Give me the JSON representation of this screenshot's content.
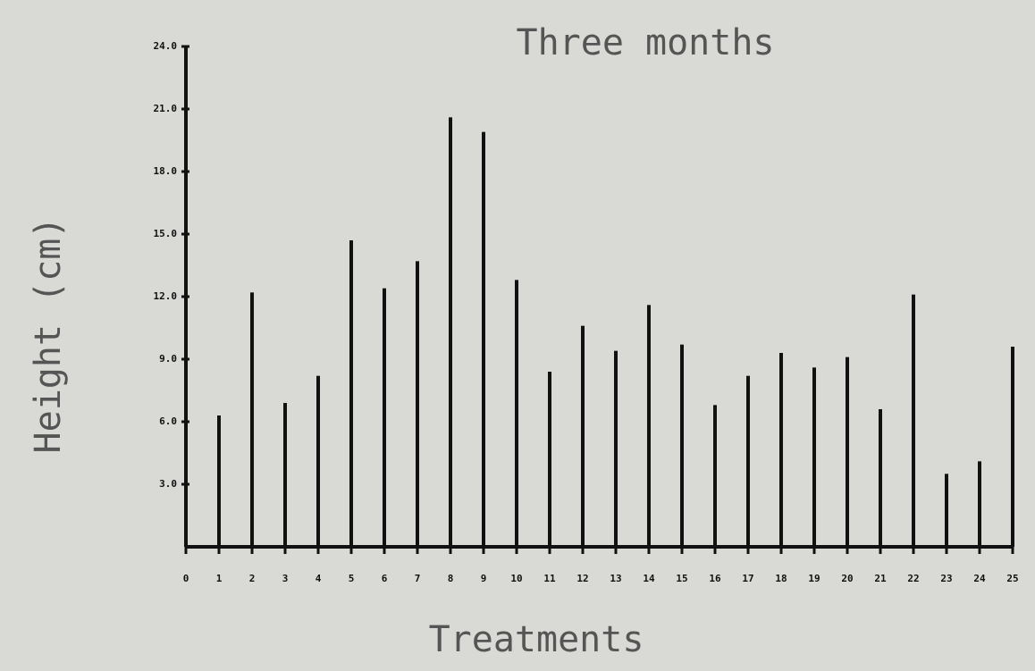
{
  "chart_data": {
    "type": "bar",
    "title": "Three months",
    "xlabel": "Treatments",
    "ylabel": "Height (cm)",
    "x": [
      1,
      2,
      3,
      4,
      5,
      6,
      7,
      8,
      9,
      10,
      11,
      12,
      13,
      14,
      15,
      16,
      17,
      18,
      19,
      20,
      21,
      22,
      23,
      24,
      25
    ],
    "values": [
      6.3,
      12.2,
      6.9,
      8.2,
      14.7,
      12.4,
      13.7,
      20.6,
      19.9,
      12.8,
      8.4,
      10.6,
      9.4,
      11.6,
      9.7,
      6.8,
      8.2,
      9.3,
      8.6,
      9.1,
      6.6,
      12.1,
      3.5,
      4.1,
      9.6
    ],
    "color": "#111111",
    "xlim": [
      0,
      25
    ],
    "xticks": [
      0,
      1,
      2,
      3,
      4,
      5,
      6,
      7,
      8,
      9,
      10,
      11,
      12,
      13,
      14,
      15,
      16,
      17,
      18,
      19,
      20,
      21,
      22,
      23,
      24,
      25
    ],
    "ylim": [
      0,
      24
    ],
    "yticks": [
      {
        "value": 3,
        "label": "3.0"
      },
      {
        "value": 6,
        "label": "6.0"
      },
      {
        "value": 9,
        "label": "9.0"
      },
      {
        "value": 12,
        "label": "12.0"
      },
      {
        "value": 15,
        "label": "15.0"
      },
      {
        "value": 18,
        "label": "18.0"
      },
      {
        "value": 21,
        "label": "21.0"
      },
      {
        "value": 24,
        "label": "24.0"
      }
    ],
    "grid": false
  }
}
